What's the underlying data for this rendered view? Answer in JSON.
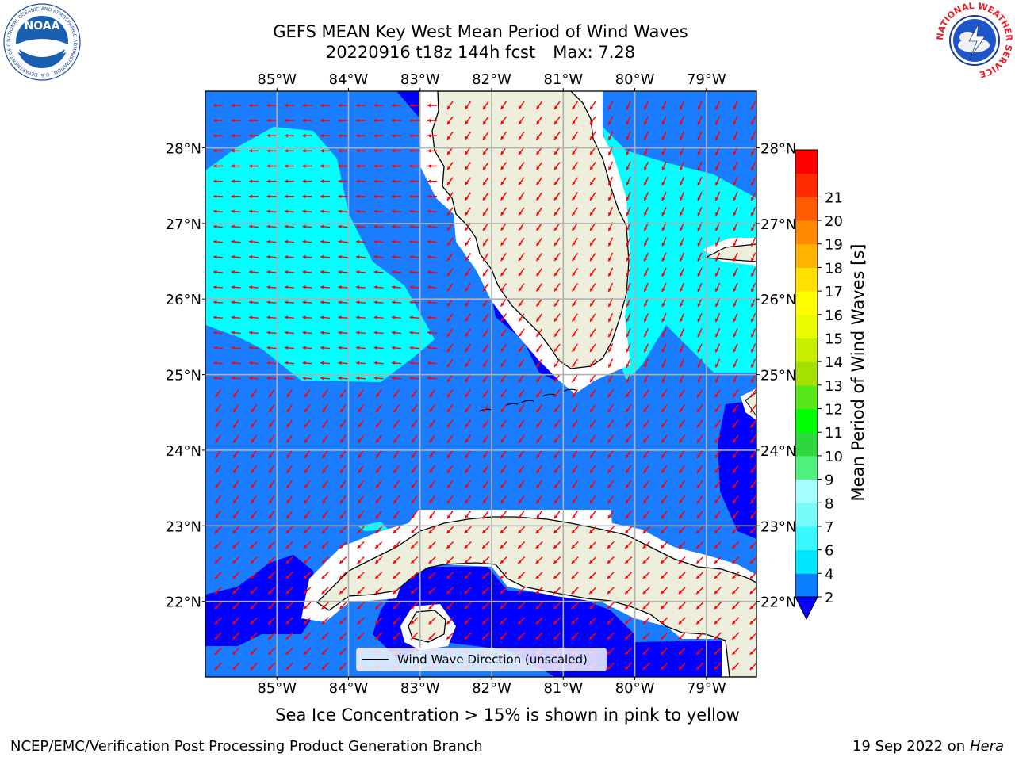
{
  "title": {
    "line1": "GEFS MEAN Key West Mean Period of Wind Waves",
    "line2": "20220916 t18z 144h fcst",
    "max": "Max: 7.28"
  },
  "axes": {
    "lon_labels": [
      "85°W",
      "84°W",
      "83°W",
      "82°W",
      "81°W",
      "80°W",
      "79°W"
    ],
    "lat_labels": [
      "28°N",
      "27°N",
      "26°N",
      "25°N",
      "24°N",
      "23°N",
      "22°N"
    ],
    "lon_values": [
      -85,
      -84,
      -83,
      -82,
      -81,
      -80,
      -79
    ],
    "lat_values": [
      28,
      27,
      26,
      25,
      24,
      23,
      22
    ],
    "lon_range": [
      -86.0,
      -78.3
    ],
    "lat_range": [
      21.0,
      28.75
    ]
  },
  "legend": {
    "label": "Wind Wave Direction (unscaled)",
    "line_color": "#000000"
  },
  "colorbar": {
    "label": "Mean Period of Wind Waves [s]",
    "ticks": [
      "2",
      "4",
      "6",
      "7",
      "8",
      "9",
      "10",
      "11",
      "12",
      "13",
      "14",
      "15",
      "16",
      "17",
      "18",
      "19",
      "20",
      "21"
    ],
    "colors": [
      "#0a7cff",
      "#00e7ff",
      "#38f7ff",
      "#77fbfb",
      "#a8ffff",
      "#52f07e",
      "#2ed83c",
      "#00ff00",
      "#58e81a",
      "#a6e000",
      "#c6f000",
      "#ecfc00",
      "#fffd00",
      "#ffe000",
      "#ffb200",
      "#ff8a00",
      "#ff5c00",
      "#ff2a00",
      "#ff0000"
    ],
    "extend_color": "#0a00ff"
  },
  "map_colors": {
    "land": "#eeeedc",
    "ocean_2_4": "#1a7cff",
    "ocean_4_6": "#00ffff",
    "ocean_lt_2": "#0000ff",
    "arrow": "#ff0000",
    "grid": "#b0b0b0"
  },
  "caption": "Sea Ice Concentration > 15% is shown in pink to yellow",
  "footer": {
    "left": "NCEP/EMC/Verification Post Processing Product Generation Branch",
    "date": "19 Sep 2022 on",
    "machine": "Hera"
  },
  "logos": {
    "noaa_text": "NOAA",
    "noaa_ring": "NATIONAL OCEANIC AND ATMOSPHERIC ADMINISTRATION · U.S. DEPARTMENT OF COMMERCE",
    "nws_ring": "NATIONAL WEATHER SERVICE"
  }
}
